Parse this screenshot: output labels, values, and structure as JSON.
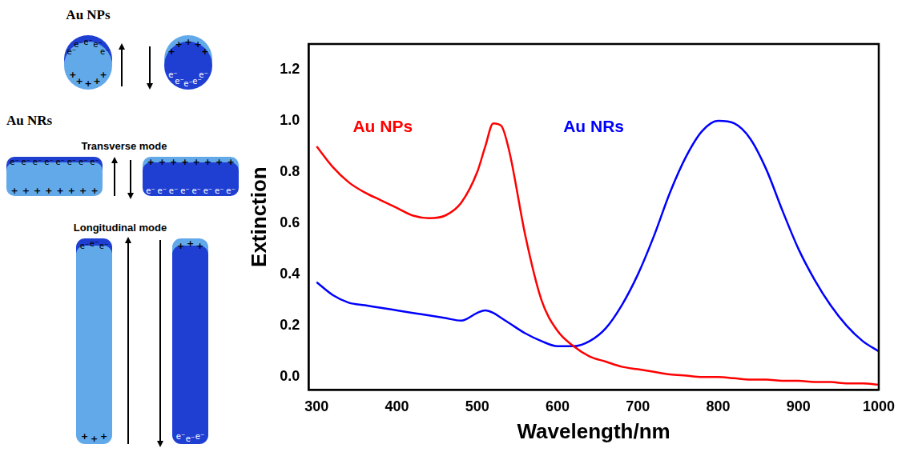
{
  "diagram": {
    "sphere_title": "Au NPs",
    "rod_title": "Au NRs",
    "transverse_label": "Transverse mode",
    "longitudinal_label": "Longitudinal mode",
    "charges": {
      "electron": "e⁻",
      "positive": "+"
    }
  },
  "chart_data": {
    "type": "line",
    "x_label": "Wavelength/nm",
    "y_label": "Extinction",
    "x": [
      300,
      320,
      340,
      360,
      380,
      400,
      420,
      440,
      460,
      480,
      500,
      510,
      520,
      530,
      540,
      560,
      580,
      600,
      620,
      640,
      660,
      680,
      700,
      720,
      740,
      760,
      780,
      800,
      820,
      840,
      860,
      880,
      900,
      920,
      940,
      960,
      980,
      1000
    ],
    "series": [
      {
        "name": "Au NPs",
        "color": "#ff0000",
        "values": [
          0.9,
          0.82,
          0.76,
          0.72,
          0.69,
          0.66,
          0.63,
          0.62,
          0.63,
          0.68,
          0.8,
          0.9,
          0.99,
          0.98,
          0.88,
          0.55,
          0.3,
          0.18,
          0.12,
          0.08,
          0.06,
          0.04,
          0.03,
          0.02,
          0.01,
          0.005,
          0.0,
          0.0,
          -0.005,
          -0.01,
          -0.01,
          -0.015,
          -0.015,
          -0.02,
          -0.02,
          -0.025,
          -0.025,
          -0.03
        ]
      },
      {
        "name": "Au NRs",
        "color": "#0000ff",
        "values": [
          0.37,
          0.32,
          0.29,
          0.28,
          0.27,
          0.26,
          0.25,
          0.24,
          0.23,
          0.22,
          0.25,
          0.26,
          0.25,
          0.23,
          0.21,
          0.17,
          0.14,
          0.12,
          0.12,
          0.14,
          0.19,
          0.28,
          0.4,
          0.55,
          0.72,
          0.86,
          0.96,
          1.0,
          0.99,
          0.93,
          0.81,
          0.65,
          0.5,
          0.38,
          0.28,
          0.2,
          0.14,
          0.1
        ]
      }
    ],
    "xlim": [
      290,
      1000
    ],
    "xticks": [
      300,
      400,
      500,
      600,
      700,
      800,
      900,
      1000
    ],
    "ylim": [
      -0.05,
      1.3
    ],
    "yticks": [
      {
        "value": 0,
        "label": "0.0"
      },
      0.2,
      0.4,
      0.6,
      0.8,
      {
        "value": 1,
        "label": "1.0"
      },
      1.2
    ],
    "grid": false
  }
}
